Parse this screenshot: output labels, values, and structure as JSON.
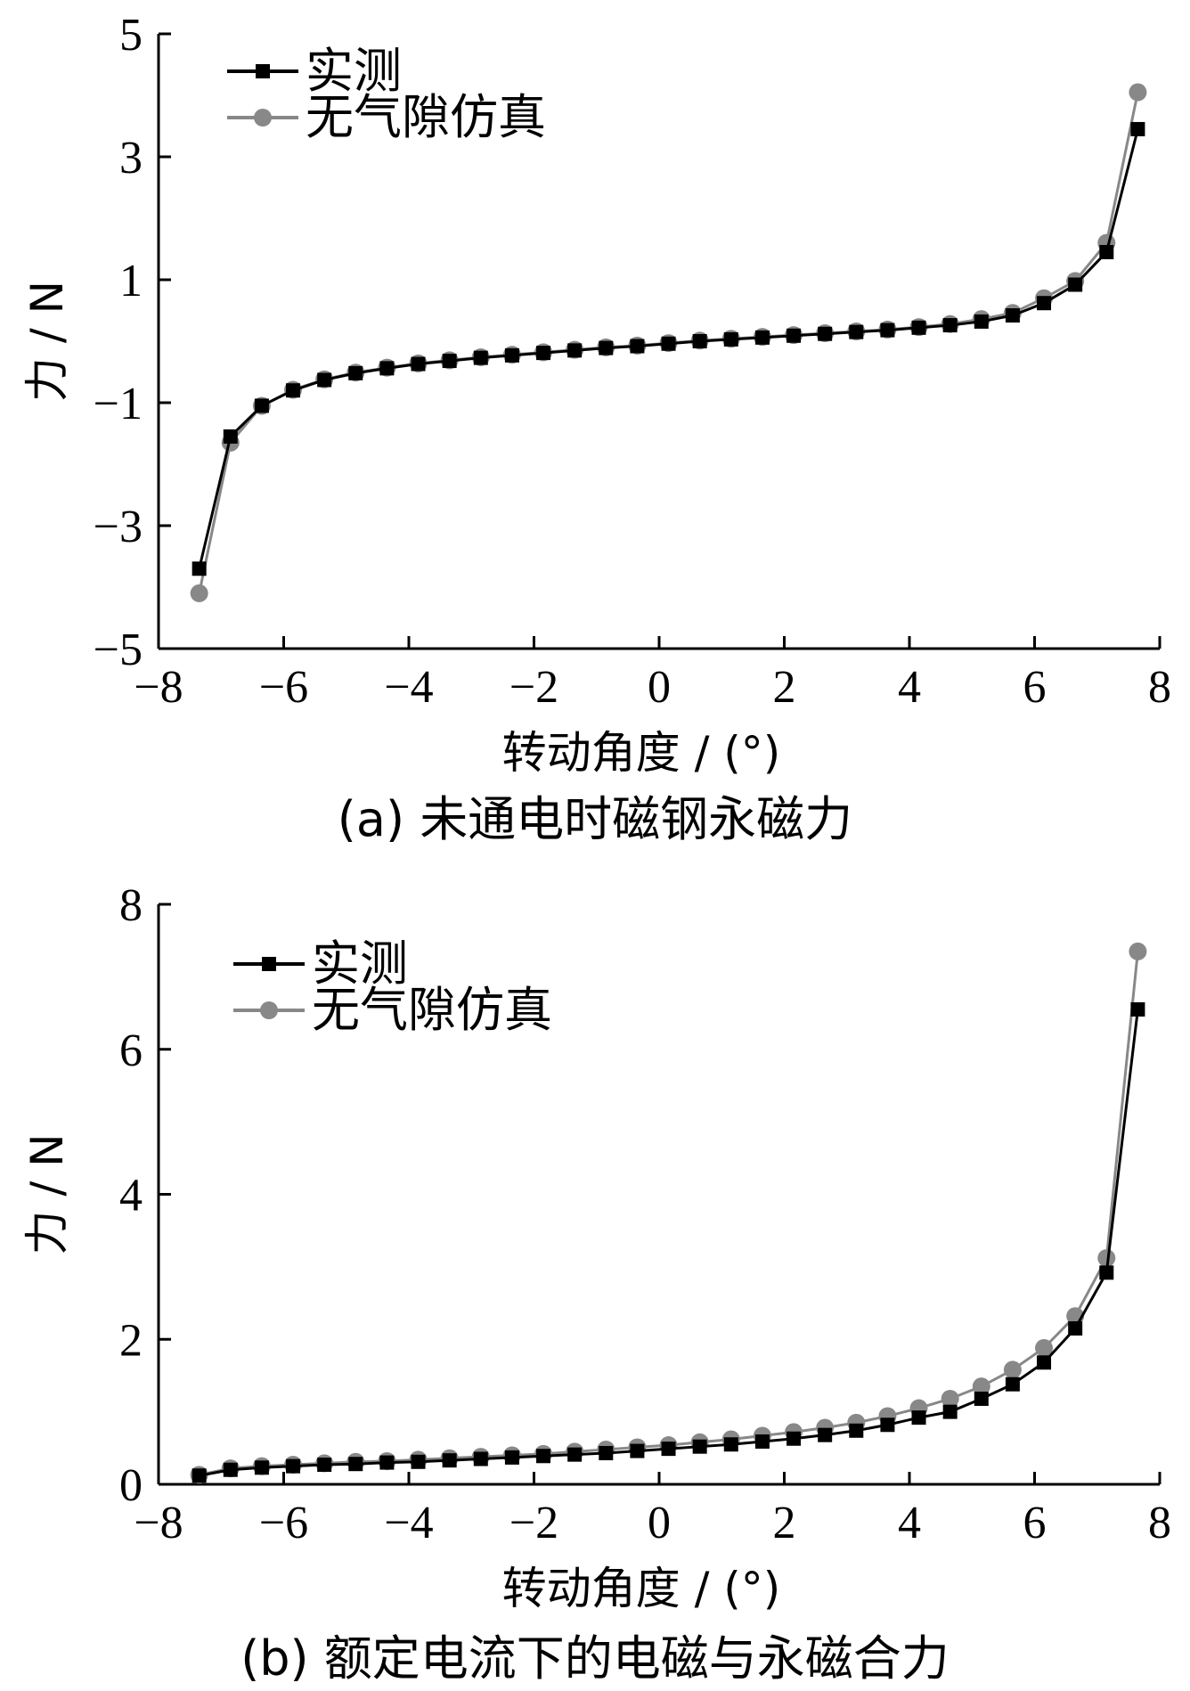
{
  "chart_data": [
    {
      "type": "line",
      "panel": "a",
      "caption": "(a)  未通电时磁钢永磁力",
      "xlabel": "转动角度 / (°)",
      "ylabel": "力 / N",
      "xlim": [
        -8,
        8
      ],
      "ylim": [
        -5,
        5
      ],
      "xticks": [
        -8,
        -6,
        -4,
        -2,
        0,
        2,
        4,
        6,
        8
      ],
      "yticks": [
        -5,
        -3,
        -1,
        1,
        3,
        5
      ],
      "x_tick_labels": [
        "−8",
        "−6",
        "−4",
        "−2",
        "0",
        "2",
        "4",
        "6",
        "8"
      ],
      "y_tick_labels": [
        "−5",
        "−3",
        "−1",
        "1",
        "3",
        "5"
      ],
      "grid": false,
      "legend_position": "top-left",
      "x": [
        -7.35,
        -6.85,
        -6.35,
        -5.85,
        -5.35,
        -4.85,
        -4.35,
        -3.85,
        -3.35,
        -2.85,
        -2.35,
        -1.85,
        -1.35,
        -0.85,
        -0.35,
        0.15,
        0.65,
        1.15,
        1.65,
        2.15,
        2.65,
        3.15,
        3.65,
        4.15,
        4.65,
        5.15,
        5.65,
        6.15,
        6.65,
        7.15,
        7.65
      ],
      "series": [
        {
          "name": "实测",
          "color": "#000000",
          "marker": "square",
          "values": [
            -3.7,
            -1.55,
            -1.05,
            -0.8,
            -0.63,
            -0.52,
            -0.44,
            -0.37,
            -0.32,
            -0.27,
            -0.23,
            -0.19,
            -0.15,
            -0.11,
            -0.08,
            -0.04,
            0.0,
            0.03,
            0.06,
            0.09,
            0.12,
            0.15,
            0.18,
            0.22,
            0.26,
            0.32,
            0.42,
            0.62,
            0.92,
            1.45,
            3.45
          ]
        },
        {
          "name": "无气隙仿真",
          "color": "#888888",
          "marker": "circle",
          "values": [
            -4.1,
            -1.65,
            -1.05,
            -0.79,
            -0.62,
            -0.51,
            -0.43,
            -0.36,
            -0.31,
            -0.26,
            -0.22,
            -0.18,
            -0.14,
            -0.1,
            -0.07,
            -0.03,
            0.01,
            0.04,
            0.07,
            0.1,
            0.13,
            0.16,
            0.19,
            0.23,
            0.28,
            0.36,
            0.46,
            0.7,
            0.98,
            1.6,
            4.05
          ]
        }
      ]
    },
    {
      "type": "line",
      "panel": "b",
      "caption": "(b)  额定电流下的电磁与永磁合力",
      "xlabel": "转动角度 / (°)",
      "ylabel": "力 / N",
      "xlim": [
        -8,
        8
      ],
      "ylim": [
        0,
        8
      ],
      "xticks": [
        -8,
        -6,
        -4,
        -2,
        0,
        2,
        4,
        6,
        8
      ],
      "yticks": [
        0,
        2,
        4,
        6,
        8
      ],
      "x_tick_labels": [
        "−8",
        "−6",
        "−4",
        "−2",
        "0",
        "2",
        "4",
        "6",
        "8"
      ],
      "y_tick_labels": [
        "0",
        "2",
        "4",
        "6",
        "8"
      ],
      "grid": false,
      "legend_position": "top-left",
      "x": [
        -7.35,
        -6.85,
        -6.35,
        -5.85,
        -5.35,
        -4.85,
        -4.35,
        -3.85,
        -3.35,
        -2.85,
        -2.35,
        -1.85,
        -1.35,
        -0.85,
        -0.35,
        0.15,
        0.65,
        1.15,
        1.65,
        2.15,
        2.65,
        3.15,
        3.65,
        4.15,
        4.65,
        5.15,
        5.65,
        6.15,
        6.65,
        7.15,
        7.65
      ],
      "series": [
        {
          "name": "实测",
          "color": "#000000",
          "marker": "square",
          "values": [
            0.12,
            0.2,
            0.23,
            0.25,
            0.27,
            0.28,
            0.3,
            0.31,
            0.33,
            0.35,
            0.37,
            0.39,
            0.41,
            0.43,
            0.46,
            0.49,
            0.52,
            0.55,
            0.59,
            0.63,
            0.68,
            0.74,
            0.82,
            0.92,
            1.0,
            1.18,
            1.38,
            1.68,
            2.15,
            2.92,
            6.55
          ]
        },
        {
          "name": "无气隙仿真",
          "color": "#888888",
          "marker": "circle",
          "values": [
            0.13,
            0.22,
            0.25,
            0.27,
            0.29,
            0.31,
            0.32,
            0.34,
            0.36,
            0.38,
            0.4,
            0.42,
            0.45,
            0.48,
            0.51,
            0.54,
            0.58,
            0.62,
            0.67,
            0.72,
            0.78,
            0.85,
            0.94,
            1.05,
            1.18,
            1.35,
            1.58,
            1.88,
            2.32,
            3.12,
            7.35
          ]
        }
      ]
    }
  ]
}
